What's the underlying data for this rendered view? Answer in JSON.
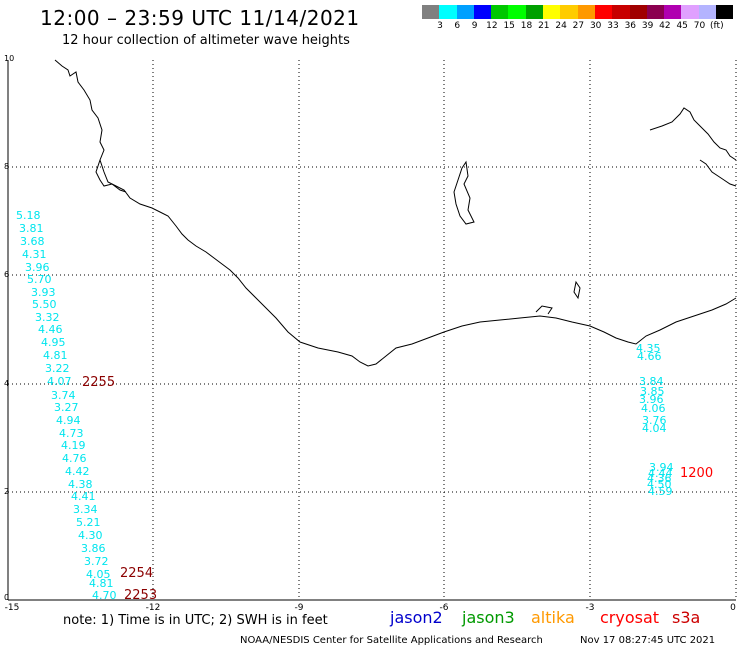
{
  "header": {
    "title": "12:00 – 23:59 UTC 11/14/2021",
    "subtitle": "12 hour collection of altimeter wave heights"
  },
  "legend": {
    "unit": "(ft)",
    "colors": [
      "#808080",
      "#00ffff",
      "#00a0ff",
      "#0000ff",
      "#00c800",
      "#00ff00",
      "#00a000",
      "#ffff00",
      "#ffcc00",
      "#ff9900",
      "#ff0000",
      "#c80000",
      "#a00000",
      "#8b0050",
      "#b000b0",
      "#e0a0ff",
      "#b4b4ff",
      "#000000"
    ],
    "labels": [
      "3",
      "6",
      "9",
      "12",
      "15",
      "18",
      "21",
      "24",
      "27",
      "30",
      "33",
      "36",
      "39",
      "42",
      "45",
      "70"
    ]
  },
  "axes": {
    "y_ticks": [
      "10",
      "8",
      "6",
      "4",
      "2",
      "0"
    ],
    "x_ticks": [
      "-15",
      "-12",
      "-9",
      "-6",
      "-3",
      "0"
    ]
  },
  "tracks": {
    "left_values": [
      "5.18",
      "3.81",
      "3.68",
      "4.31",
      "3.96",
      "5.70",
      "3.93",
      "5.50",
      "3.32",
      "4.46",
      "4.95",
      "4.81",
      "3.22",
      "4.07",
      "3.74",
      "3.27",
      "4.94",
      "4.73",
      "4.19",
      "4.76",
      "4.42",
      "4.38",
      "4.41",
      "3.34",
      "5.21",
      "4.30",
      "3.86",
      "3.72",
      "4.05",
      "4.81",
      "4.70"
    ],
    "right_values_top": [
      "4.35",
      "4.66"
    ],
    "right_values_mid": [
      "3.84",
      "3.85",
      "3.96",
      "4.06",
      "3.76",
      "4.04"
    ],
    "right_values_bottom": [
      "3.94",
      "4.44",
      "4.36",
      "4.50",
      "4.59"
    ],
    "times": [
      {
        "label": "2255",
        "color": "#8b0000"
      },
      {
        "label": "2254",
        "color": "#8b0000"
      },
      {
        "label": "2253",
        "color": "#8b0000"
      },
      {
        "label": "1200",
        "color": "#ff0000"
      }
    ]
  },
  "note": "note:  1) Time is in UTC;  2) SWH is in feet",
  "satellites": [
    {
      "name": "jason2",
      "color": "#0000cc"
    },
    {
      "name": "jason3",
      "color": "#009900"
    },
    {
      "name": "altika",
      "color": "#ff9900"
    },
    {
      "name": "cryosat",
      "color": "#ff0000"
    },
    {
      "name": "s3a",
      "color": "#cc0000"
    }
  ],
  "footer": {
    "left": "NOAA/NESDIS Center for Satellite Applications and Research",
    "right": "Nov 17 08:27:45 UTC 2021"
  }
}
